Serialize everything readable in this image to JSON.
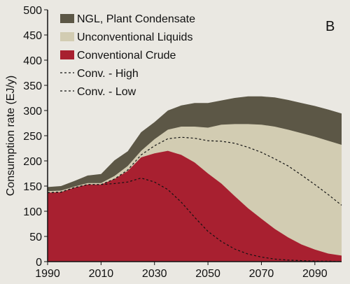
{
  "chart_data": {
    "type": "area",
    "panel_label": "B",
    "ylabel": "Consumption rate (EJ/y)",
    "xlabel": "",
    "xlim": [
      1990,
      2100
    ],
    "ylim": [
      0,
      500
    ],
    "x_ticks": [
      1990,
      2010,
      2030,
      2050,
      2070,
      2090
    ],
    "y_ticks": [
      0,
      50,
      100,
      150,
      200,
      250,
      300,
      350,
      400,
      450,
      500
    ],
    "grid": false,
    "legend_position": "top-left",
    "stacked_series": [
      {
        "name": "Conventional Crude",
        "color": "#a82030",
        "x": [
          1990,
          1995,
          2000,
          2005,
          2010,
          2015,
          2020,
          2025,
          2030,
          2035,
          2040,
          2045,
          2050,
          2055,
          2060,
          2065,
          2070,
          2075,
          2080,
          2085,
          2090,
          2095,
          2100
        ],
        "y": [
          137,
          138,
          147,
          153,
          153,
          164,
          180,
          207,
          215,
          220,
          212,
          197,
          175,
          155,
          130,
          106,
          85,
          65,
          48,
          34,
          24,
          16,
          12
        ]
      },
      {
        "name": "Unconventional Liquids",
        "color": "#d2ccb2",
        "x": [
          1990,
          1995,
          2000,
          2005,
          2010,
          2015,
          2020,
          2025,
          2030,
          2035,
          2040,
          2045,
          2050,
          2055,
          2060,
          2065,
          2070,
          2075,
          2080,
          2085,
          2090,
          2095,
          2100
        ],
        "y": [
          140,
          141,
          149,
          156,
          156,
          170,
          190,
          220,
          243,
          262,
          268,
          268,
          266,
          272,
          273,
          273,
          272,
          268,
          262,
          255,
          248,
          240,
          232
        ]
      },
      {
        "name": "NGL, Plant Condensate",
        "color": "#5c5746",
        "x": [
          1990,
          1995,
          2000,
          2005,
          2010,
          2015,
          2020,
          2025,
          2030,
          2035,
          2040,
          2045,
          2050,
          2055,
          2060,
          2065,
          2070,
          2075,
          2080,
          2085,
          2090,
          2095,
          2100
        ],
        "y": [
          148,
          150,
          160,
          171,
          174,
          201,
          219,
          257,
          277,
          300,
          310,
          315,
          315,
          320,
          325,
          328,
          328,
          326,
          321,
          315,
          309,
          302,
          294
        ]
      }
    ],
    "line_series": [
      {
        "name": "Conv. - High",
        "color": "#111111",
        "style": "dashed",
        "x": [
          1990,
          1995,
          2000,
          2005,
          2010,
          2015,
          2020,
          2025,
          2030,
          2035,
          2040,
          2045,
          2050,
          2055,
          2060,
          2065,
          2070,
          2075,
          2080,
          2085,
          2090,
          2095,
          2100
        ],
        "y": [
          137,
          138,
          147,
          153,
          153,
          164,
          182,
          212,
          230,
          244,
          247,
          245,
          240,
          239,
          235,
          227,
          217,
          204,
          190,
          172,
          153,
          133,
          112
        ]
      },
      {
        "name": "Conv. - Low",
        "color": "#111111",
        "style": "dashed",
        "x": [
          1990,
          1995,
          2000,
          2005,
          2010,
          2015,
          2020,
          2025,
          2030,
          2035,
          2040,
          2045,
          2050,
          2055,
          2060,
          2065,
          2070,
          2075,
          2080,
          2085,
          2090,
          2095,
          2100
        ],
        "y": [
          137,
          138,
          147,
          153,
          153,
          155,
          158,
          166,
          158,
          143,
          118,
          88,
          60,
          40,
          25,
          15,
          9,
          5,
          3,
          2,
          1,
          1,
          0
        ]
      }
    ],
    "legend_order": [
      "NGL, Plant Condensate",
      "Unconventional Liquids",
      "Conventional Crude",
      "Conv. - High",
      "Conv. - Low"
    ]
  }
}
